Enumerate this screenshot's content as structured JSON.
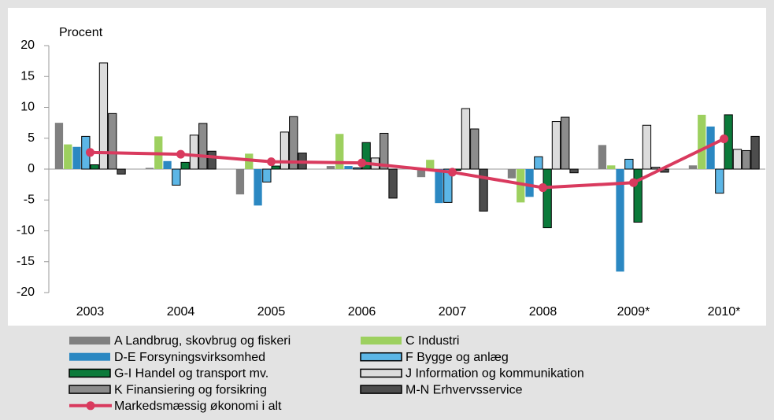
{
  "chart_data": {
    "type": "bar",
    "ylabel": "Procent",
    "categories": [
      "2003",
      "2004",
      "2005",
      "2006",
      "2007",
      "2008",
      "2009*",
      "2010*"
    ],
    "ylim": [
      -20,
      20
    ],
    "yticks": [
      -20,
      -15,
      -10,
      -5,
      0,
      5,
      10,
      15,
      20
    ],
    "series": [
      {
        "name": "A Landbrug, skovbrug og fiskeri",
        "color": "#808080",
        "values": [
          7.5,
          0.2,
          -4.1,
          0.5,
          -1.3,
          -1.5,
          3.9,
          0.6
        ]
      },
      {
        "name": "C Industri",
        "color": "#9dd05f",
        "values": [
          4,
          5.3,
          2.5,
          5.7,
          1.5,
          -5.4,
          0.6,
          8.8
        ]
      },
      {
        "name": "D-E Forsyningsvirksomhed",
        "color": "#2b88c2",
        "values": [
          3.6,
          1.3,
          -5.9,
          0.5,
          -5.5,
          -4.5,
          -16.6,
          6.9
        ]
      },
      {
        "name": "F Bygge og anlæg",
        "color": "#5cb6e6",
        "edgecolor": "#000000",
        "values": [
          5.3,
          -2.6,
          -2.1,
          0.2,
          -5.4,
          2,
          1.6,
          -3.9
        ]
      },
      {
        "name": "G-I Handel og transport mv.",
        "color": "#0b7a3a",
        "edgecolor": "#000000",
        "values": [
          0.7,
          1.1,
          0.5,
          4.3,
          -0.2,
          -9.5,
          -8.6,
          8.8
        ]
      },
      {
        "name": "J Information og kommunikation",
        "color": "#dcdcdc",
        "edgecolor": "#000000",
        "values": [
          17.2,
          5.5,
          6,
          1.8,
          9.8,
          7.7,
          7.1,
          3.2
        ]
      },
      {
        "name": "K Finansiering og forsikring",
        "color": "#8c8c8c",
        "edgecolor": "#000000",
        "values": [
          9,
          7.4,
          8.5,
          5.8,
          6.5,
          8.4,
          0.3,
          3
        ]
      },
      {
        "name": "M-N Erhvervsservice",
        "color": "#4d4d4d",
        "edgecolor": "#000000",
        "values": [
          -0.8,
          2.9,
          2.6,
          -4.7,
          -6.8,
          -0.6,
          -0.5,
          5.3
        ]
      },
      {
        "name": "Markedsmæssig økonomi i alt",
        "type": "line",
        "color": "#d93a5e",
        "values": [
          2.7,
          2.4,
          1.2,
          1,
          -0.5,
          -3,
          -2.2,
          4.9
        ]
      }
    ]
  }
}
